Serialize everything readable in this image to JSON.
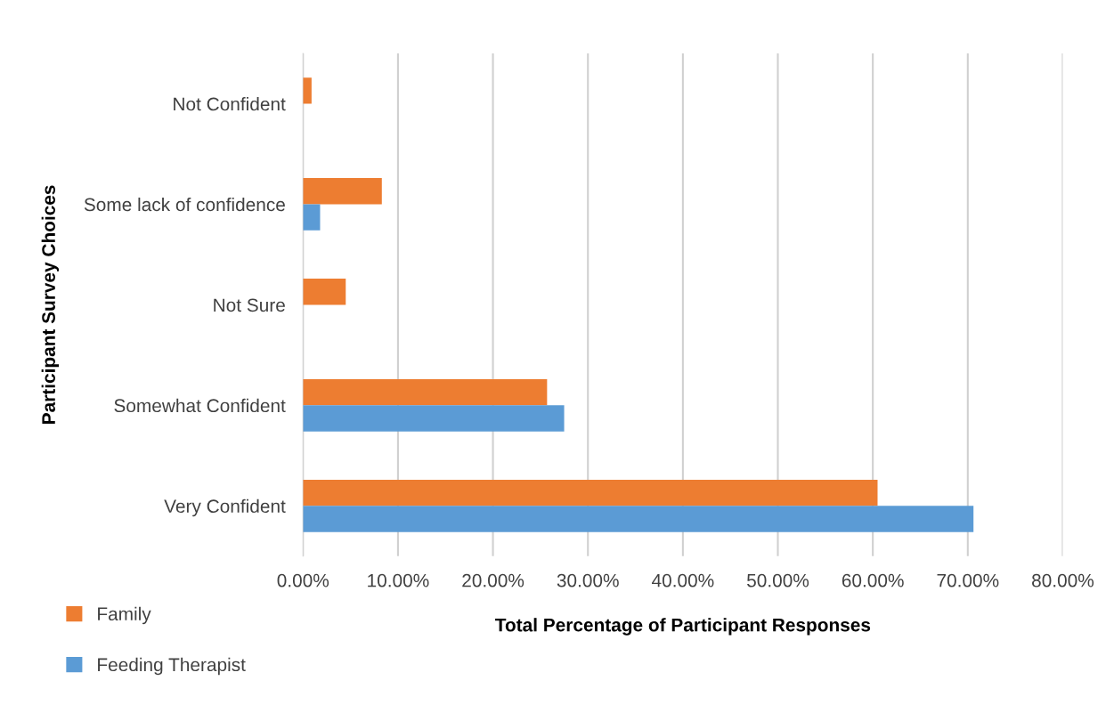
{
  "chart_data": {
    "type": "bar",
    "orientation": "horizontal",
    "xlabel": "Total Percentage of Participant Responses",
    "ylabel": "Participant Survey Choices",
    "categories": [
      "Not Confident",
      "Some lack of confidence",
      "Not Sure",
      "Somewhat Confident",
      "Very Confident"
    ],
    "series": [
      {
        "name": "Family",
        "color": "#ed7d31",
        "values": [
          0.9,
          8.3,
          4.5,
          25.7,
          60.5
        ]
      },
      {
        "name": "Feeding Therapist",
        "color": "#5b9bd5",
        "values": [
          0,
          1.8,
          0,
          27.5,
          70.6
        ]
      }
    ],
    "xlim": [
      0,
      80
    ],
    "xticks": [
      {
        "value": 0,
        "label": "0.00%"
      },
      {
        "value": 10,
        "label": "10.00%"
      },
      {
        "value": 20,
        "label": "20.00%"
      },
      {
        "value": 30,
        "label": "30.00%"
      },
      {
        "value": 40,
        "label": "40.00%"
      },
      {
        "value": 50,
        "label": "50.00%"
      },
      {
        "value": 60,
        "label": "60.00%"
      },
      {
        "value": 70,
        "label": "70.00%"
      },
      {
        "value": 80,
        "label": "80.00%"
      }
    ],
    "grid": "x",
    "legend": "bottom left"
  }
}
